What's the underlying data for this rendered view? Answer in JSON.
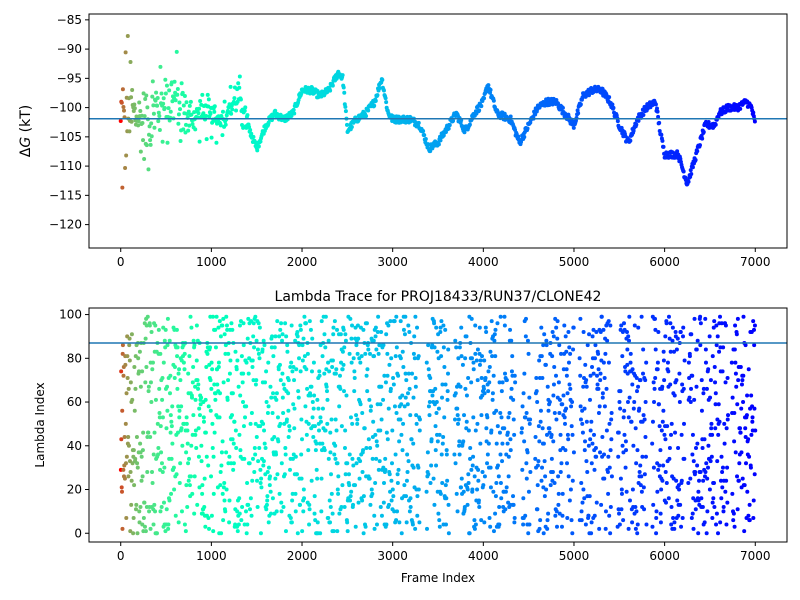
{
  "chart_data": [
    {
      "type": "scatter",
      "title": "",
      "xlabel": "",
      "ylabel": "ΔG (kT)",
      "ylabel_delta": "Δ",
      "ylabel_var": "G",
      "ylabel_unit": " (kT)",
      "xlim": [
        -350,
        7350
      ],
      "ylim": [
        -124,
        -84
      ],
      "xticks": [
        0,
        1000,
        2000,
        3000,
        4000,
        5000,
        6000,
        7000
      ],
      "yticks": [
        -120,
        -115,
        -110,
        -105,
        -100,
        -95,
        -90,
        -85
      ],
      "hline": -101.9,
      "colormap": "rainbow",
      "color_by": "frame index, reversed (red at frame 0, violet at frame 7000)",
      "points_note": "roughly 7000 points, one per frame",
      "profile": [
        [
          0,
          -104
        ],
        [
          100,
          -100
        ],
        [
          200,
          -102
        ],
        [
          300,
          -103
        ],
        [
          400,
          -100
        ],
        [
          500,
          -99
        ],
        [
          600,
          -98
        ],
        [
          700,
          -101
        ],
        [
          800,
          -102
        ],
        [
          900,
          -101
        ],
        [
          1000,
          -102
        ],
        [
          1100,
          -102
        ],
        [
          1200,
          -100
        ],
        [
          1300,
          -98
        ],
        [
          1400,
          -103
        ],
        [
          1500,
          -107
        ],
        [
          1600,
          -103
        ],
        [
          1700,
          -101
        ],
        [
          1800,
          -102
        ],
        [
          1900,
          -101
        ],
        [
          2000,
          -97
        ],
        [
          2100,
          -97
        ],
        [
          2200,
          -98
        ],
        [
          2300,
          -97
        ],
        [
          2400,
          -94
        ],
        [
          2450,
          -95
        ],
        [
          2500,
          -104
        ],
        [
          2600,
          -102
        ],
        [
          2700,
          -101
        ],
        [
          2800,
          -99
        ],
        [
          2880,
          -95
        ],
        [
          2950,
          -101
        ],
        [
          3000,
          -102
        ],
        [
          3200,
          -102
        ],
        [
          3300,
          -103
        ],
        [
          3400,
          -107
        ],
        [
          3500,
          -106
        ],
        [
          3700,
          -101
        ],
        [
          3800,
          -104
        ],
        [
          3900,
          -101
        ],
        [
          4000,
          -99
        ],
        [
          4050,
          -96
        ],
        [
          4150,
          -101
        ],
        [
          4300,
          -102
        ],
        [
          4400,
          -106
        ],
        [
          4500,
          -103
        ],
        [
          4600,
          -100
        ],
        [
          4700,
          -99
        ],
        [
          4800,
          -99
        ],
        [
          4900,
          -101
        ],
        [
          5000,
          -103
        ],
        [
          5100,
          -98
        ],
        [
          5200,
          -97
        ],
        [
          5300,
          -97
        ],
        [
          5400,
          -99
        ],
        [
          5500,
          -103
        ],
        [
          5600,
          -106
        ],
        [
          5700,
          -102
        ],
        [
          5800,
          -100
        ],
        [
          5900,
          -99
        ],
        [
          5950,
          -104
        ],
        [
          6000,
          -108
        ],
        [
          6150,
          -108
        ],
        [
          6250,
          -113
        ],
        [
          6350,
          -108
        ],
        [
          6450,
          -103
        ],
        [
          6550,
          -103
        ],
        [
          6600,
          -101
        ],
        [
          6700,
          -100
        ],
        [
          6800,
          -100
        ],
        [
          6900,
          -99
        ],
        [
          6960,
          -100
        ],
        [
          7000,
          -103
        ]
      ]
    },
    {
      "type": "scatter",
      "title": "Lambda Trace for PROJ18433/RUN37/CLONE42",
      "xlabel": "Frame Index",
      "ylabel": "Lambda Index",
      "xlim": [
        -350,
        7350
      ],
      "ylim": [
        -4,
        103
      ],
      "xticks": [
        0,
        1000,
        2000,
        3000,
        4000,
        5000,
        6000,
        7000
      ],
      "yticks": [
        0,
        20,
        40,
        60,
        80,
        100
      ],
      "hline": 87,
      "colormap": "rainbow",
      "color_by": "frame index, reversed (red at frame 0, violet at frame 7000)",
      "points_note": "roughly 7000 points, lambda index 0-99 per frame"
    }
  ]
}
